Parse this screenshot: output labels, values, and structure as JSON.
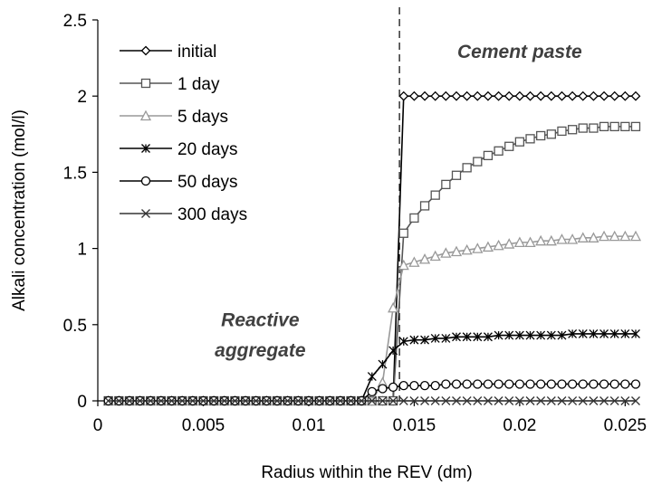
{
  "chart_data": {
    "type": "line",
    "title": "",
    "xlabel": "Radius within the REV (dm)",
    "ylabel": "Alkali concentration (mol/l)",
    "xlim": [
      0,
      0.0255
    ],
    "ylim": [
      0,
      2.5
    ],
    "x_ticks": [
      0,
      0.005,
      0.01,
      0.015,
      0.02,
      0.025
    ],
    "x_tick_labels": [
      "0",
      "0.005",
      "0.01",
      "0.015",
      "0.02",
      "0.025"
    ],
    "y_ticks": [
      0,
      0.5,
      1,
      1.5,
      2,
      2.5
    ],
    "y_tick_labels": [
      "0",
      "0.5",
      "1",
      "1.5",
      "2",
      "2.5"
    ],
    "grid": false,
    "legend_position": "top-left",
    "boundary_x": 0.0143,
    "annotations": [
      {
        "text": "Cement paste",
        "x": 0.02,
        "y": 2.25
      },
      {
        "text": "Reactive",
        "x": 0.0077,
        "y": 0.49
      },
      {
        "text": "aggregate",
        "x": 0.0077,
        "y": 0.29
      }
    ],
    "series": [
      {
        "name": "initial",
        "marker": "diamond",
        "color": "#000000",
        "x": [
          0.0005,
          0.001,
          0.0015,
          0.002,
          0.0025,
          0.003,
          0.0035,
          0.004,
          0.0045,
          0.005,
          0.0055,
          0.006,
          0.0065,
          0.007,
          0.0075,
          0.008,
          0.0085,
          0.009,
          0.0095,
          0.01,
          0.0105,
          0.011,
          0.0115,
          0.012,
          0.0125,
          0.013,
          0.0135,
          0.014,
          0.0145,
          0.015,
          0.0155,
          0.016,
          0.0165,
          0.017,
          0.0175,
          0.018,
          0.0185,
          0.019,
          0.0195,
          0.02,
          0.0205,
          0.021,
          0.0215,
          0.022,
          0.0225,
          0.023,
          0.0235,
          0.024,
          0.0245,
          0.025,
          0.0255
        ],
        "y": [
          0,
          0,
          0,
          0,
          0,
          0,
          0,
          0,
          0,
          0,
          0,
          0,
          0,
          0,
          0,
          0,
          0,
          0,
          0,
          0,
          0,
          0,
          0,
          0,
          0,
          0,
          0,
          0,
          2,
          2,
          2,
          2,
          2,
          2,
          2,
          2,
          2,
          2,
          2,
          2,
          2,
          2,
          2,
          2,
          2,
          2,
          2,
          2,
          2,
          2,
          2
        ]
      },
      {
        "name": "1 day",
        "marker": "square",
        "color": "#555555",
        "x": [
          0.0005,
          0.001,
          0.0015,
          0.002,
          0.0025,
          0.003,
          0.0035,
          0.004,
          0.0045,
          0.005,
          0.0055,
          0.006,
          0.0065,
          0.007,
          0.0075,
          0.008,
          0.0085,
          0.009,
          0.0095,
          0.01,
          0.0105,
          0.011,
          0.0115,
          0.012,
          0.0125,
          0.013,
          0.0135,
          0.014,
          0.0145,
          0.015,
          0.0155,
          0.016,
          0.0165,
          0.017,
          0.0175,
          0.018,
          0.0185,
          0.019,
          0.0195,
          0.02,
          0.0205,
          0.021,
          0.0215,
          0.022,
          0.0225,
          0.023,
          0.0235,
          0.024,
          0.0245,
          0.025,
          0.0255
        ],
        "y": [
          0,
          0,
          0,
          0,
          0,
          0,
          0,
          0,
          0,
          0,
          0,
          0,
          0,
          0,
          0,
          0,
          0,
          0,
          0,
          0,
          0,
          0,
          0,
          0,
          0,
          0,
          0,
          0,
          1.1,
          1.2,
          1.28,
          1.35,
          1.42,
          1.48,
          1.53,
          1.57,
          1.61,
          1.64,
          1.67,
          1.7,
          1.72,
          1.74,
          1.75,
          1.77,
          1.78,
          1.79,
          1.79,
          1.8,
          1.8,
          1.8,
          1.8
        ]
      },
      {
        "name": "5 days",
        "marker": "triangle",
        "color": "#999999",
        "x": [
          0.0005,
          0.001,
          0.0015,
          0.002,
          0.0025,
          0.003,
          0.0035,
          0.004,
          0.0045,
          0.005,
          0.0055,
          0.006,
          0.0065,
          0.007,
          0.0075,
          0.008,
          0.0085,
          0.009,
          0.0095,
          0.01,
          0.0105,
          0.011,
          0.0115,
          0.012,
          0.0125,
          0.013,
          0.0135,
          0.014,
          0.0145,
          0.015,
          0.0155,
          0.016,
          0.0165,
          0.017,
          0.0175,
          0.018,
          0.0185,
          0.019,
          0.0195,
          0.02,
          0.0205,
          0.021,
          0.0215,
          0.022,
          0.0225,
          0.023,
          0.0235,
          0.024,
          0.0245,
          0.025,
          0.0255
        ],
        "y": [
          0,
          0,
          0,
          0,
          0,
          0,
          0,
          0,
          0,
          0,
          0,
          0,
          0,
          0,
          0,
          0,
          0,
          0,
          0,
          0,
          0,
          0,
          0,
          0,
          0,
          0,
          0.12,
          0.61,
          0.89,
          0.91,
          0.93,
          0.95,
          0.97,
          0.98,
          0.99,
          1.0,
          1.01,
          1.02,
          1.03,
          1.04,
          1.04,
          1.05,
          1.05,
          1.06,
          1.06,
          1.07,
          1.07,
          1.08,
          1.08,
          1.08,
          1.08
        ]
      },
      {
        "name": "20 days",
        "marker": "asterisk",
        "color": "#000000",
        "x": [
          0.0005,
          0.001,
          0.0015,
          0.002,
          0.0025,
          0.003,
          0.0035,
          0.004,
          0.0045,
          0.005,
          0.0055,
          0.006,
          0.0065,
          0.007,
          0.0075,
          0.008,
          0.0085,
          0.009,
          0.0095,
          0.01,
          0.0105,
          0.011,
          0.0115,
          0.012,
          0.0125,
          0.013,
          0.0135,
          0.014,
          0.0145,
          0.015,
          0.0155,
          0.016,
          0.0165,
          0.017,
          0.0175,
          0.018,
          0.0185,
          0.019,
          0.0195,
          0.02,
          0.0205,
          0.021,
          0.0215,
          0.022,
          0.0225,
          0.023,
          0.0235,
          0.024,
          0.0245,
          0.025,
          0.0255
        ],
        "y": [
          0,
          0,
          0,
          0,
          0,
          0,
          0,
          0,
          0,
          0,
          0,
          0,
          0,
          0,
          0,
          0,
          0,
          0,
          0,
          0,
          0,
          0,
          0,
          0,
          0,
          0.16,
          0.24,
          0.33,
          0.39,
          0.4,
          0.4,
          0.41,
          0.41,
          0.42,
          0.42,
          0.42,
          0.42,
          0.43,
          0.43,
          0.43,
          0.43,
          0.43,
          0.43,
          0.43,
          0.44,
          0.44,
          0.44,
          0.44,
          0.44,
          0.44,
          0.44
        ]
      },
      {
        "name": "50 days",
        "marker": "circle",
        "color": "#000000",
        "x": [
          0.0005,
          0.001,
          0.0015,
          0.002,
          0.0025,
          0.003,
          0.0035,
          0.004,
          0.0045,
          0.005,
          0.0055,
          0.006,
          0.0065,
          0.007,
          0.0075,
          0.008,
          0.0085,
          0.009,
          0.0095,
          0.01,
          0.0105,
          0.011,
          0.0115,
          0.012,
          0.0125,
          0.013,
          0.0135,
          0.014,
          0.0145,
          0.015,
          0.0155,
          0.016,
          0.0165,
          0.017,
          0.0175,
          0.018,
          0.0185,
          0.019,
          0.0195,
          0.02,
          0.0205,
          0.021,
          0.0215,
          0.022,
          0.0225,
          0.023,
          0.0235,
          0.024,
          0.0245,
          0.025,
          0.0255
        ],
        "y": [
          0,
          0,
          0,
          0,
          0,
          0,
          0,
          0,
          0,
          0,
          0,
          0,
          0,
          0,
          0,
          0,
          0,
          0,
          0,
          0,
          0,
          0,
          0,
          0,
          0,
          0.06,
          0.08,
          0.09,
          0.1,
          0.1,
          0.1,
          0.1,
          0.11,
          0.11,
          0.11,
          0.11,
          0.11,
          0.11,
          0.11,
          0.11,
          0.11,
          0.11,
          0.11,
          0.11,
          0.11,
          0.11,
          0.11,
          0.11,
          0.11,
          0.11,
          0.11
        ]
      },
      {
        "name": "300 days",
        "marker": "cross",
        "color": "#333333",
        "x": [
          0.0005,
          0.001,
          0.0015,
          0.002,
          0.0025,
          0.003,
          0.0035,
          0.004,
          0.0045,
          0.005,
          0.0055,
          0.006,
          0.0065,
          0.007,
          0.0075,
          0.008,
          0.0085,
          0.009,
          0.0095,
          0.01,
          0.0105,
          0.011,
          0.0115,
          0.012,
          0.0125,
          0.013,
          0.0135,
          0.014,
          0.0145,
          0.015,
          0.0155,
          0.016,
          0.0165,
          0.017,
          0.0175,
          0.018,
          0.0185,
          0.019,
          0.0195,
          0.02,
          0.0205,
          0.021,
          0.0215,
          0.022,
          0.0225,
          0.023,
          0.0235,
          0.024,
          0.0245,
          0.025,
          0.0255
        ],
        "y": [
          0,
          0,
          0,
          0,
          0,
          0,
          0,
          0,
          0,
          0,
          0,
          0,
          0,
          0,
          0,
          0,
          0,
          0,
          0,
          0,
          0,
          0,
          0,
          0,
          0,
          0,
          0,
          0,
          0,
          0,
          0,
          0,
          0,
          0,
          0,
          0,
          0,
          0,
          0,
          0,
          0,
          0,
          0,
          0,
          0,
          0,
          0,
          0,
          0,
          0,
          0
        ]
      }
    ]
  }
}
